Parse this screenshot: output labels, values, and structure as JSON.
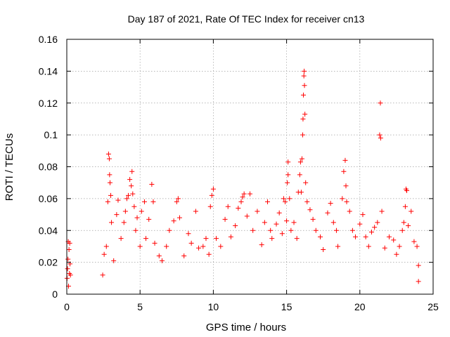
{
  "chart_data": {
    "type": "scatter",
    "title": "Day 187 of 2021, Rate Of TEC Index for receiver cn13",
    "xlabel": "GPS time / hours",
    "ylabel": "ROTI / TECUs",
    "xlim": [
      0,
      25
    ],
    "ylim": [
      0,
      0.16
    ],
    "xticks": [
      0,
      5,
      10,
      15,
      20,
      25
    ],
    "xtick_labels": [
      "0",
      "5",
      "10",
      "15",
      "20",
      "25"
    ],
    "yticks": [
      0,
      0.02,
      0.04,
      0.06,
      0.08,
      0.1,
      0.12,
      0.14,
      0.16
    ],
    "ytick_labels": [
      "0",
      "0.02",
      "0.04",
      "0.06",
      "0.08",
      "0.1",
      "0.12",
      "0.14",
      "0.16"
    ],
    "grid": true,
    "marker": "plus",
    "color": "#ff0000",
    "series": [
      {
        "name": "ROTI",
        "points": [
          [
            0.02,
            0.01
          ],
          [
            0.05,
            0.016
          ],
          [
            0.08,
            0.022
          ],
          [
            0.1,
            0.033
          ],
          [
            0.12,
            0.005
          ],
          [
            0.15,
            0.028
          ],
          [
            0.18,
            0.013
          ],
          [
            0.2,
            0.032
          ],
          [
            0.22,
            0.019
          ],
          [
            0.25,
            0.012
          ],
          [
            2.45,
            0.012
          ],
          [
            2.55,
            0.025
          ],
          [
            2.7,
            0.03
          ],
          [
            2.8,
            0.058
          ],
          [
            2.85,
            0.088
          ],
          [
            2.9,
            0.085
          ],
          [
            2.92,
            0.075
          ],
          [
            2.95,
            0.07
          ],
          [
            3.0,
            0.062
          ],
          [
            3.05,
            0.045
          ],
          [
            3.2,
            0.021
          ],
          [
            3.4,
            0.05
          ],
          [
            3.5,
            0.059
          ],
          [
            3.7,
            0.035
          ],
          [
            3.9,
            0.045
          ],
          [
            4.0,
            0.052
          ],
          [
            4.1,
            0.06
          ],
          [
            4.2,
            0.062
          ],
          [
            4.3,
            0.072
          ],
          [
            4.4,
            0.068
          ],
          [
            4.45,
            0.077
          ],
          [
            4.5,
            0.063
          ],
          [
            4.6,
            0.055
          ],
          [
            4.7,
            0.04
          ],
          [
            4.8,
            0.048
          ],
          [
            5.0,
            0.03
          ],
          [
            5.1,
            0.052
          ],
          [
            5.3,
            0.058
          ],
          [
            5.4,
            0.035
          ],
          [
            5.6,
            0.047
          ],
          [
            5.8,
            0.069
          ],
          [
            5.9,
            0.058
          ],
          [
            6.0,
            0.032
          ],
          [
            6.3,
            0.024
          ],
          [
            6.5,
            0.021
          ],
          [
            6.8,
            0.03
          ],
          [
            7.0,
            0.04
          ],
          [
            7.3,
            0.046
          ],
          [
            7.5,
            0.058
          ],
          [
            7.6,
            0.06
          ],
          [
            7.7,
            0.048
          ],
          [
            8.0,
            0.024
          ],
          [
            8.3,
            0.038
          ],
          [
            8.5,
            0.032
          ],
          [
            8.8,
            0.052
          ],
          [
            9.0,
            0.029
          ],
          [
            9.3,
            0.03
          ],
          [
            9.5,
            0.035
          ],
          [
            9.7,
            0.025
          ],
          [
            9.8,
            0.055
          ],
          [
            9.9,
            0.062
          ],
          [
            10.0,
            0.066
          ],
          [
            10.2,
            0.035
          ],
          [
            10.5,
            0.03
          ],
          [
            10.8,
            0.047
          ],
          [
            11.0,
            0.055
          ],
          [
            11.2,
            0.036
          ],
          [
            11.5,
            0.043
          ],
          [
            11.7,
            0.054
          ],
          [
            11.9,
            0.058
          ],
          [
            12.0,
            0.061
          ],
          [
            12.1,
            0.063
          ],
          [
            12.3,
            0.049
          ],
          [
            12.5,
            0.063
          ],
          [
            12.7,
            0.04
          ],
          [
            13.0,
            0.052
          ],
          [
            13.3,
            0.031
          ],
          [
            13.5,
            0.045
          ],
          [
            13.7,
            0.058
          ],
          [
            13.9,
            0.04
          ],
          [
            14.0,
            0.035
          ],
          [
            14.3,
            0.044
          ],
          [
            14.5,
            0.051
          ],
          [
            14.7,
            0.038
          ],
          [
            14.8,
            0.06
          ],
          [
            14.9,
            0.058
          ],
          [
            15.0,
            0.046
          ],
          [
            15.05,
            0.07
          ],
          [
            15.1,
            0.075
          ],
          [
            15.1,
            0.083
          ],
          [
            15.2,
            0.06
          ],
          [
            15.3,
            0.04
          ],
          [
            15.5,
            0.045
          ],
          [
            15.7,
            0.035
          ],
          [
            15.8,
            0.064
          ],
          [
            15.9,
            0.075
          ],
          [
            15.95,
            0.083
          ],
          [
            16.0,
            0.064
          ],
          [
            16.05,
            0.085
          ],
          [
            16.1,
            0.1
          ],
          [
            16.12,
            0.11
          ],
          [
            16.15,
            0.125
          ],
          [
            16.18,
            0.137
          ],
          [
            16.2,
            0.14
          ],
          [
            16.22,
            0.131
          ],
          [
            16.25,
            0.113
          ],
          [
            16.3,
            0.07
          ],
          [
            16.4,
            0.058
          ],
          [
            16.6,
            0.053
          ],
          [
            16.8,
            0.047
          ],
          [
            17.0,
            0.04
          ],
          [
            17.3,
            0.036
          ],
          [
            17.5,
            0.028
          ],
          [
            17.8,
            0.051
          ],
          [
            18.0,
            0.057
          ],
          [
            18.2,
            0.045
          ],
          [
            18.4,
            0.04
          ],
          [
            18.5,
            0.03
          ],
          [
            18.8,
            0.06
          ],
          [
            18.9,
            0.077
          ],
          [
            19.0,
            0.084
          ],
          [
            19.05,
            0.068
          ],
          [
            19.1,
            0.058
          ],
          [
            19.3,
            0.052
          ],
          [
            19.5,
            0.04
          ],
          [
            19.7,
            0.036
          ],
          [
            20.0,
            0.044
          ],
          [
            20.2,
            0.05
          ],
          [
            20.4,
            0.036
          ],
          [
            20.6,
            0.03
          ],
          [
            20.8,
            0.039
          ],
          [
            21.0,
            0.042
          ],
          [
            21.2,
            0.045
          ],
          [
            21.35,
            0.1
          ],
          [
            21.4,
            0.12
          ],
          [
            21.42,
            0.098
          ],
          [
            21.5,
            0.052
          ],
          [
            21.7,
            0.029
          ],
          [
            22.0,
            0.036
          ],
          [
            22.3,
            0.034
          ],
          [
            22.5,
            0.025
          ],
          [
            22.7,
            0.03
          ],
          [
            22.9,
            0.04
          ],
          [
            23.0,
            0.045
          ],
          [
            23.1,
            0.055
          ],
          [
            23.15,
            0.066
          ],
          [
            23.2,
            0.065
          ],
          [
            23.3,
            0.043
          ],
          [
            23.5,
            0.052
          ],
          [
            23.7,
            0.033
          ],
          [
            23.9,
            0.03
          ],
          [
            24.0,
            0.018
          ],
          [
            24.0,
            0.008
          ]
        ]
      }
    ]
  }
}
